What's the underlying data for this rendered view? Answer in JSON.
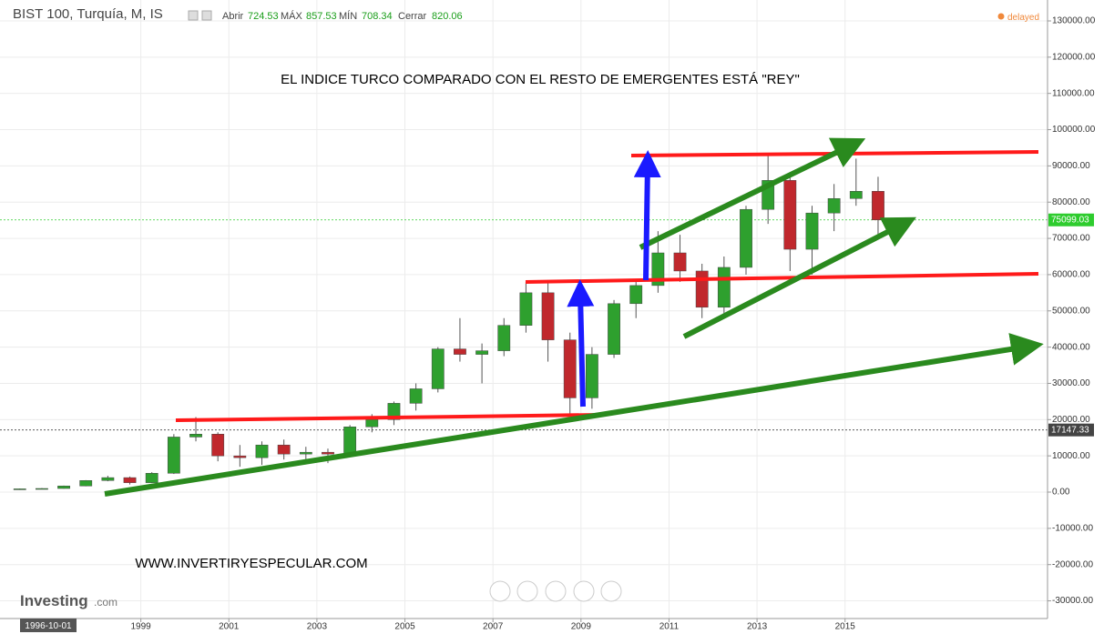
{
  "chart_data": {
    "type": "candlestick",
    "title": "BIST 100, Turquía, M, IS",
    "ohlc_header": {
      "open_label": "Abrir",
      "open": "724.53",
      "high_label": "MÁX",
      "high": "857.53",
      "low_label": "MÍN",
      "low": "708.34",
      "close_label": "Cerrar",
      "close": "820.06"
    },
    "status": "delayed",
    "annotation": "EL INDICE TURCO COMPARADO CON EL RESTO DE EMERGENTES ESTÁ \"REY\"",
    "website": "WWW.INVERTIRYESPECULAR.COM",
    "logo": "Investing",
    "logo_suffix": ".com",
    "x_cursor_label": "1996-10-01",
    "x": [
      1996.0,
      1996.5,
      1997.0,
      1997.5,
      1998.0,
      1998.5,
      1999.0,
      1999.5,
      2000.0,
      2000.5,
      2001.0,
      2001.5,
      2002.0,
      2002.5,
      2003.0,
      2003.5,
      2004.0,
      2004.5,
      2005.0,
      2005.5,
      2006.0,
      2006.5,
      2007.0,
      2007.5,
      2008.0,
      2008.5,
      2009.0,
      2009.5,
      2010.0,
      2010.5,
      2011.0,
      2011.5,
      2012.0,
      2012.5,
      2013.0,
      2013.5,
      2014.0,
      2014.5,
      2015.0,
      2015.5
    ],
    "open": [
      800,
      900,
      1000,
      1700,
      3200,
      4000,
      2600,
      5200,
      15200,
      16000,
      10000,
      9500,
      13000,
      10500,
      11000,
      10500,
      18000,
      20000,
      24500,
      28500,
      39500,
      38000,
      39000,
      46000,
      55000,
      42000,
      26000,
      38000,
      52000,
      57000,
      66000,
      61000,
      51000,
      62000,
      78000,
      86000,
      67000,
      77000,
      81000,
      83000
    ],
    "high": [
      1000,
      1100,
      1800,
      3300,
      4500,
      4300,
      5500,
      16000,
      20700,
      16500,
      13000,
      14000,
      14500,
      12500,
      12000,
      18500,
      21500,
      25000,
      30000,
      40000,
      48000,
      41000,
      48000,
      58000,
      58000,
      44000,
      40000,
      53000,
      58000,
      72000,
      71000,
      63000,
      65000,
      79000,
      93000,
      87000,
      79000,
      85000,
      92000,
      87000
    ],
    "low": [
      700,
      800,
      950,
      1600,
      3000,
      2100,
      2500,
      5000,
      14000,
      8500,
      7000,
      7500,
      9000,
      8500,
      8000,
      10000,
      16500,
      18500,
      22500,
      27500,
      36000,
      30000,
      37500,
      44000,
      36000,
      21000,
      23000,
      37000,
      48000,
      55000,
      58000,
      48000,
      49000,
      60000,
      74000,
      61000,
      60000,
      72000,
      79000,
      71000
    ],
    "close": [
      900,
      1000,
      1700,
      3200,
      4000,
      2600,
      5200,
      15200,
      16000,
      10000,
      9500,
      13000,
      10500,
      11000,
      10500,
      18000,
      20000,
      24500,
      28500,
      39500,
      38000,
      39000,
      46000,
      55000,
      42000,
      26000,
      38000,
      52000,
      57000,
      66000,
      61000,
      51000,
      62000,
      78000,
      86000,
      67000,
      77000,
      81000,
      83000,
      75099
    ],
    "up_color": "#2ea02e",
    "down_color": "#c0282d",
    "xlim": [
      1995.8,
      2019.6
    ],
    "xticks": [
      1999,
      2001,
      2003,
      2005,
      2007,
      2009,
      2011,
      2013,
      2015
    ],
    "ylim": [
      -34880,
      135770
    ],
    "yticks": [
      {
        "value": -30000,
        "label": "-30000.00"
      },
      {
        "value": -20000,
        "label": "-20000.00"
      },
      {
        "value": -10000,
        "label": "-10000.00"
      },
      {
        "value": 0,
        "label": "0.00"
      },
      {
        "value": 10000,
        "label": "10000.00"
      },
      {
        "value": 20000,
        "label": "20000.00"
      },
      {
        "value": 30000,
        "label": "30000.00"
      },
      {
        "value": 40000,
        "label": "40000.00"
      },
      {
        "value": 50000,
        "label": "50000.00"
      },
      {
        "value": 60000,
        "label": "60000.00"
      },
      {
        "value": 70000,
        "label": "70000.00"
      },
      {
        "value": 80000,
        "label": "80000.00"
      },
      {
        "value": 90000,
        "label": "90000.00"
      },
      {
        "value": 100000,
        "label": "100000.00"
      },
      {
        "value": 110000,
        "label": "110000.00"
      },
      {
        "value": 120000,
        "label": "120000.00"
      },
      {
        "value": 130000,
        "label": "130000.00"
      }
    ],
    "price_markers": [
      75099.03,
      17147.33
    ],
    "price_marker_colors": [
      "#2ecc2e",
      "#444444"
    ],
    "grid": true
  }
}
